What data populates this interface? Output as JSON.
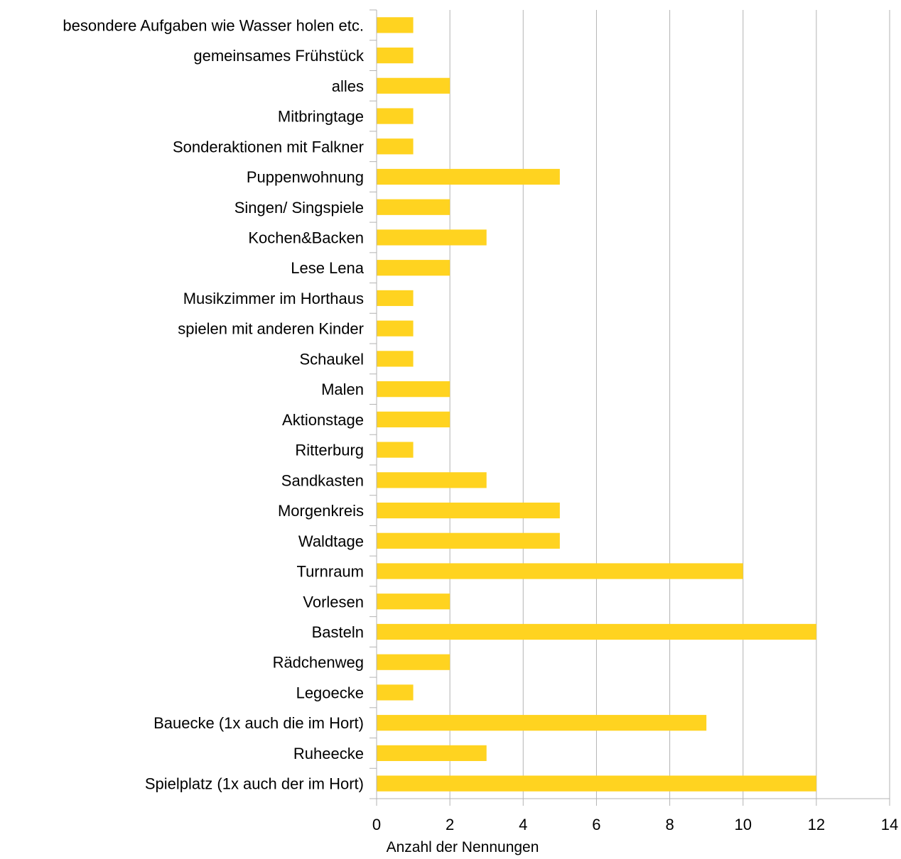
{
  "chart_data": {
    "type": "bar",
    "orientation": "horizontal",
    "categories": [
      "besondere Aufgaben wie Wasser holen etc.",
      "gemeinsames Frühstück",
      "alles",
      "Mitbringtage",
      "Sonderaktionen mit Falkner",
      "Puppenwohnung",
      "Singen/ Singspiele",
      "Kochen&Backen",
      "Lese Lena",
      "Musikzimmer im Horthaus",
      "spielen mit anderen Kinder",
      "Schaukel",
      "Malen",
      "Aktionstage",
      "Ritterburg",
      "Sandkasten",
      "Morgenkreis",
      "Waldtage",
      "Turnraum",
      "Vorlesen",
      "Basteln",
      "Rädchenweg",
      "Legoecke",
      "Bauecke (1x auch die im Hort)",
      "Ruheecke",
      "Spielplatz (1x auch der im Hort)"
    ],
    "values": [
      1,
      1,
      2,
      1,
      1,
      5,
      2,
      3,
      2,
      1,
      1,
      1,
      2,
      2,
      1,
      3,
      5,
      5,
      10,
      2,
      12,
      2,
      1,
      9,
      3,
      12
    ],
    "xlabel": "Anzahl der Nennungen",
    "xlim": [
      0,
      14
    ],
    "xticks": [
      0,
      2,
      4,
      6,
      8,
      10,
      12,
      14
    ],
    "grid": "vertical",
    "legend": "none",
    "bar_color": "#ffd320",
    "grid_color": "#b3b3b3"
  }
}
